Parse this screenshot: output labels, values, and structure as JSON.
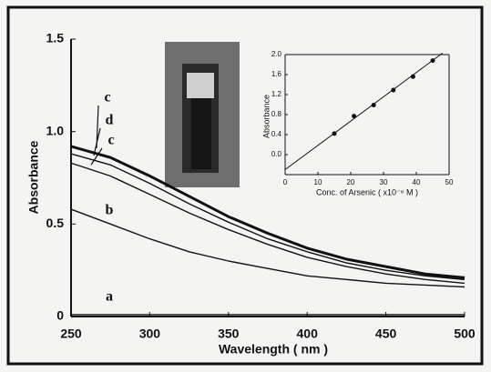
{
  "chart_data": [
    {
      "type": "line",
      "x_label": "Wavelength ( nm )",
      "y_label": "Absorbance",
      "x": [
        250,
        275,
        300,
        325,
        350,
        375,
        400,
        425,
        450,
        475,
        500
      ],
      "series": [
        {
          "name": "a",
          "color": "#111111",
          "values": [
            0.01,
            0.01,
            0.01,
            0.01,
            0.01,
            0.01,
            0.01,
            0.01,
            0.01,
            0.01,
            0.01
          ]
        },
        {
          "name": "b",
          "color": "#111111",
          "values": [
            0.58,
            0.5,
            0.42,
            0.35,
            0.3,
            0.26,
            0.22,
            0.2,
            0.18,
            0.17,
            0.16
          ]
        },
        {
          "name": "c",
          "color": "#111111",
          "values": [
            0.83,
            0.76,
            0.66,
            0.56,
            0.47,
            0.39,
            0.32,
            0.27,
            0.23,
            0.2,
            0.18
          ]
        },
        {
          "name": "d",
          "color": "#111111",
          "values": [
            0.88,
            0.82,
            0.72,
            0.61,
            0.51,
            0.42,
            0.35,
            0.29,
            0.25,
            0.22,
            0.2
          ]
        },
        {
          "name": "c",
          "color": "#111111",
          "values": [
            0.92,
            0.86,
            0.76,
            0.65,
            0.54,
            0.45,
            0.37,
            0.31,
            0.27,
            0.23,
            0.21
          ]
        }
      ],
      "xlim": [
        250,
        500
      ],
      "xticks": [
        250,
        300,
        350,
        400,
        450,
        500
      ],
      "ylim": [
        0,
        1.5
      ],
      "yticks": [
        0,
        0.5,
        {
          "value": 1,
          "label": "1.0"
        },
        1.5
      ]
    },
    {
      "type": "scatter",
      "x_label": "Conc. of Arsenic ( x10⁻⁶ M )",
      "y_label": "Absorbance",
      "x": [
        15,
        21,
        27,
        33,
        39,
        45
      ],
      "values": [
        0.42,
        0.77,
        0.99,
        1.29,
        1.56,
        1.88
      ],
      "fit": {
        "x": [
          0,
          48
        ],
        "values": [
          -0.3,
          2.03
        ]
      },
      "color": "#111111",
      "xlim": [
        0,
        50
      ],
      "xticks": [
        0,
        10,
        20,
        30,
        40,
        50
      ],
      "ylim": [
        -0.4,
        2
      ],
      "yticks": [
        {
          "value": 0,
          "label": "0.0"
        },
        0.4,
        0.8,
        1.2,
        1.6,
        {
          "value": 2,
          "label": "2.0"
        }
      ]
    }
  ]
}
